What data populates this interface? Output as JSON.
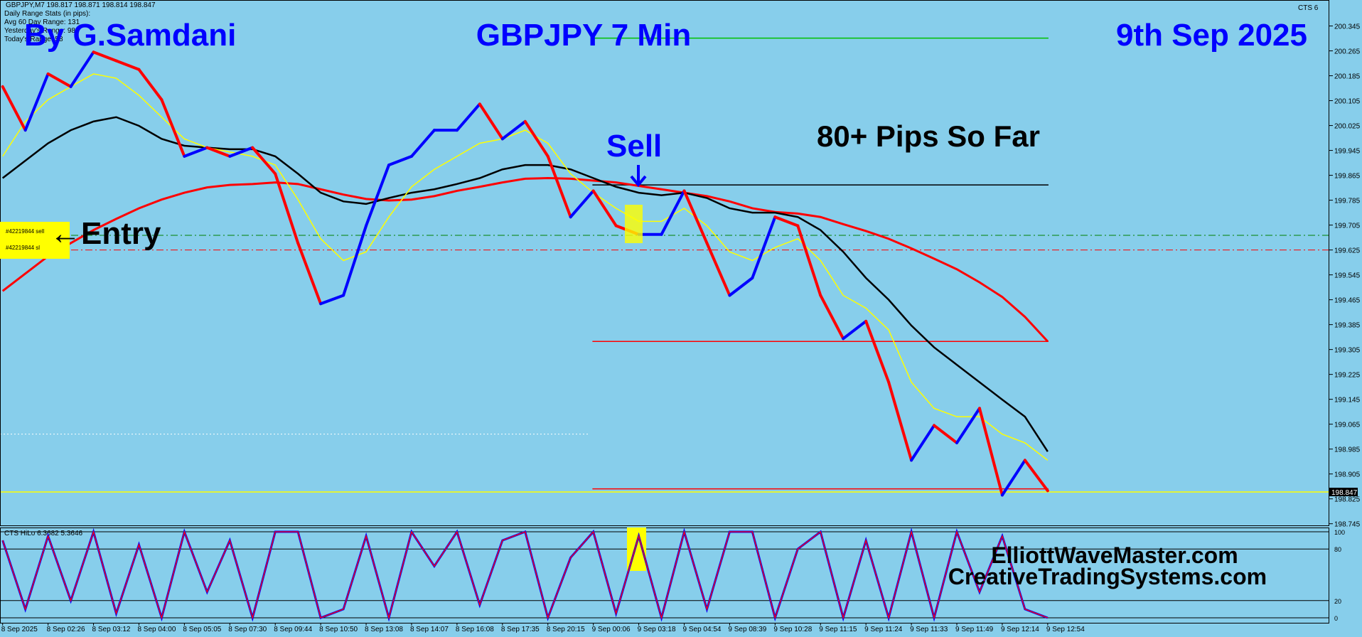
{
  "chart_data": [
    {
      "type": "line",
      "symbol_info": "GBPJPY,M7  198.817 198.871 198.814 198.847",
      "stats": [
        "Daily Range Stats (in pips):",
        "Avg 60 Day Range: 131",
        "Yesterday's Range: 98",
        "Today's Range: 58"
      ],
      "indicator_label": "CTS 6",
      "annotations": {
        "author": "By G.Samdani",
        "title": "GBPJPY 7 Min",
        "date": "9th Sep 2025",
        "result": "80+ Pips So Far",
        "sell": "Sell",
        "entry": "←Entry"
      },
      "orders": [
        "#42219844 sell",
        "#42219844 sl"
      ],
      "categories": [
        "8 Sep 2025",
        null,
        "8 Sep 02:26",
        null,
        "8 Sep 03:12",
        null,
        "8 Sep 04:00",
        null,
        "8 Sep 05:05",
        null,
        "8 Sep 07:30",
        null,
        "8 Sep 09:44",
        null,
        "8 Sep 10:50",
        null,
        "8 Sep 13:08",
        null,
        "8 Sep 14:07",
        null,
        "8 Sep 16:08",
        null,
        "8 Sep 17:35",
        null,
        "8 Sep 20:15",
        null,
        "9 Sep 00:06",
        null,
        "9 Sep 03:18",
        null,
        "9 Sep 04:54",
        null,
        "9 Sep 08:39",
        null,
        "9 Sep 10:28",
        null,
        "9 Sep 11:15",
        null,
        "9 Sep 11:24",
        null,
        "9 Sep 11:33",
        null,
        "9 Sep 11:49",
        null,
        "9 Sep 12:14",
        null,
        "9 Sep 12:54"
      ],
      "ylim": [
        198.742,
        200.423
      ],
      "yticks": [
        198.745,
        198.825,
        198.905,
        198.985,
        199.065,
        199.145,
        199.225,
        199.305,
        199.385,
        199.465,
        199.545,
        199.625,
        199.705,
        199.785,
        199.865,
        199.945,
        200.025,
        200.105,
        200.185,
        200.265,
        200.345
      ],
      "current_price": 198.847,
      "price": {
        "up_color": "#0000ff",
        "down_color": "#ff0000",
        "values": [
          200.15,
          200.01,
          200.191,
          200.15,
          200.261,
          200.233,
          200.205,
          200.108,
          199.926,
          199.954,
          199.926,
          199.954,
          199.87,
          199.647,
          199.452,
          199.479,
          199.703,
          199.898,
          199.926,
          200.01,
          200.01,
          200.094,
          199.982,
          200.038,
          199.926,
          199.731,
          199.815,
          199.703,
          199.675,
          199.675,
          199.815,
          199.647,
          199.479,
          199.535,
          199.731,
          199.703,
          199.479,
          199.34,
          199.396,
          199.2,
          198.949,
          199.061,
          199.005,
          199.116,
          198.837,
          198.949,
          198.851
        ]
      },
      "series": [
        {
          "color": "#ff0000",
          "width": 3,
          "values": [
            199.493,
            199.549,
            199.605,
            199.647,
            199.689,
            199.725,
            199.759,
            199.787,
            199.809,
            199.826,
            199.834,
            199.837,
            199.842,
            199.837,
            199.82,
            199.803,
            199.789,
            199.784,
            199.787,
            199.798,
            199.815,
            199.828,
            199.842,
            199.854,
            199.856,
            199.854,
            199.848,
            199.842,
            199.831,
            199.82,
            199.809,
            199.798,
            199.781,
            199.759,
            199.747,
            199.742,
            199.731,
            199.708,
            199.686,
            199.661,
            199.63,
            199.597,
            199.563,
            199.521,
            199.474,
            199.41,
            199.331
          ]
        },
        {
          "color": "#000000",
          "width": 2.5,
          "values": [
            199.856,
            199.912,
            199.968,
            200.01,
            200.038,
            200.052,
            200.024,
            199.982,
            199.96,
            199.954,
            199.949,
            199.949,
            199.926,
            199.87,
            199.809,
            199.781,
            199.773,
            199.792,
            199.809,
            199.82,
            199.837,
            199.856,
            199.884,
            199.898,
            199.898,
            199.884,
            199.856,
            199.828,
            199.809,
            199.801,
            199.809,
            199.792,
            199.759,
            199.745,
            199.745,
            199.731,
            199.689,
            199.619,
            199.535,
            199.465,
            199.382,
            199.312,
            199.256,
            199.2,
            199.144,
            199.089,
            198.977
          ]
        },
        {
          "color": "#ffff00",
          "width": 1.5,
          "values": [
            199.926,
            200.038,
            200.108,
            200.15,
            200.191,
            200.177,
            200.122,
            200.052,
            199.982,
            199.954,
            199.94,
            199.926,
            199.898,
            199.787,
            199.661,
            199.591,
            199.619,
            199.731,
            199.828,
            199.884,
            199.926,
            199.968,
            199.982,
            200.01,
            199.968,
            199.87,
            199.809,
            199.759,
            199.717,
            199.717,
            199.759,
            199.703,
            199.619,
            199.591,
            199.633,
            199.661,
            199.591,
            199.479,
            199.438,
            199.368,
            199.2,
            199.116,
            199.089,
            199.089,
            199.033,
            199.005,
            198.949
          ]
        }
      ],
      "hlines": [
        {
          "value": 200.306,
          "color": "#00c000",
          "style": "solid"
        },
        {
          "value": 199.834,
          "color": "#000000",
          "style": "solid"
        },
        {
          "value": 199.331,
          "color": "#ff0000",
          "style": "solid"
        },
        {
          "value": 198.857,
          "color": "#ff0000",
          "style": "solid"
        },
        {
          "value": 198.847,
          "color": "#ffff00",
          "style": "solid"
        },
        {
          "value": 199.672,
          "color": "#008000",
          "style": "dashdot"
        },
        {
          "value": 199.625,
          "color": "#ff0000",
          "style": "dashdot"
        },
        {
          "value": 199.033,
          "color": "#ffffff",
          "style": "dotted"
        }
      ]
    },
    {
      "type": "line",
      "title": "CTS HiLo 6.3682 5.3646",
      "annotations": {
        "site1": "ElliottWaveMaster.com",
        "site2": "CreativeTradingSystems.com"
      },
      "ylim": [
        0,
        100
      ],
      "yticks": [
        0,
        20,
        80,
        100
      ],
      "color": "#0000ff",
      "signal_color": "#ff0000",
      "values": [
        90,
        10,
        95,
        20,
        100,
        5,
        85,
        0,
        100,
        30,
        90,
        0,
        100,
        100,
        0,
        10,
        95,
        0,
        100,
        60,
        100,
        15,
        90,
        100,
        0,
        70,
        100,
        5,
        95,
        0,
        100,
        10,
        100,
        100,
        0,
        80,
        100,
        0,
        90,
        0,
        100,
        0,
        100,
        30,
        95,
        10,
        0
      ]
    }
  ]
}
